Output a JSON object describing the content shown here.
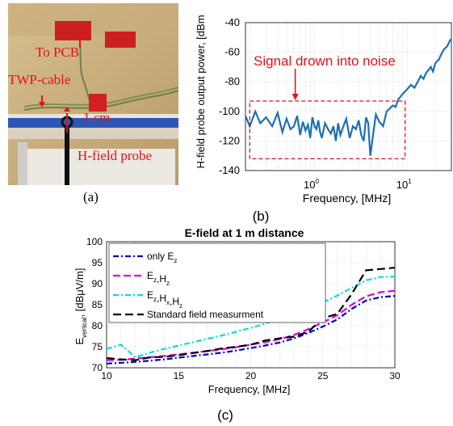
{
  "photo": {
    "labels": {
      "to_pcb": "To PCB",
      "twp_cable": "TWP-cable",
      "distance": "1 cm",
      "probe": "H-field probe"
    }
  },
  "captions": {
    "a": "(a)",
    "b": "(b)",
    "c": "(c)"
  },
  "colors": {
    "annotation_red": "#e3121b",
    "trace_blue": "#1f6fb2"
  },
  "chart_data": [
    {
      "type": "line",
      "panel": "b",
      "title": "",
      "xlabel": "Frequency, [MHz]",
      "ylabel": "H-field probe output power, [dBm",
      "xscale": "log",
      "xlim": [
        0.18,
        30
      ],
      "ylim": [
        -140,
        -40
      ],
      "yticks": [
        -40,
        -60,
        -80,
        -100,
        -120,
        -140
      ],
      "xtick_labels": [
        {
          "value": 1,
          "base": "10",
          "exp": "0"
        },
        {
          "value": 10,
          "base": "10",
          "exp": "1"
        }
      ],
      "grid": true,
      "annotation": "Signal drown into noise",
      "annotation_box": {
        "x": [
          0.2,
          9.5
        ],
        "y": [
          -93,
          -132
        ]
      },
      "annotation_arrow_x": 0.62,
      "series": [
        {
          "color": "#1f6fb2",
          "x": [
            0.18,
            0.2,
            0.23,
            0.26,
            0.3,
            0.35,
            0.4,
            0.45,
            0.5,
            0.55,
            0.6,
            0.65,
            0.7,
            0.75,
            0.8,
            0.85,
            0.9,
            0.95,
            1.0,
            1.05,
            1.1,
            1.15,
            1.2,
            1.3,
            1.4,
            1.5,
            1.6,
            1.7,
            1.8,
            1.9,
            2.0,
            2.2,
            2.4,
            2.6,
            2.8,
            3.0,
            3.2,
            3.4,
            3.6,
            3.8,
            4.0,
            4.3,
            4.6,
            5.0,
            5.5,
            6.0,
            6.5,
            7.0,
            7.5,
            8.0,
            9.0,
            10,
            11,
            12,
            13,
            14,
            15,
            16,
            17,
            18,
            19,
            20,
            21,
            22,
            23,
            24,
            25,
            26,
            27,
            28,
            29,
            30
          ],
          "y": [
            -103,
            -110,
            -100,
            -108,
            -104,
            -110,
            -101,
            -114,
            -105,
            -112,
            -110,
            -103,
            -116,
            -107,
            -113,
            -109,
            -118,
            -104,
            -110,
            -112,
            -106,
            -114,
            -118,
            -108,
            -112,
            -115,
            -110,
            -120,
            -108,
            -116,
            -112,
            -105,
            -118,
            -110,
            -112,
            -106,
            -116,
            -120,
            -104,
            -108,
            -130,
            -115,
            -102,
            -107,
            -110,
            -100,
            -98,
            -96,
            -97,
            -92,
            -88,
            -85,
            -82,
            -84,
            -80,
            -76,
            -78,
            -74,
            -72,
            -70,
            -73,
            -68,
            -66,
            -65,
            -62,
            -60,
            -58,
            -57,
            -56,
            -54,
            -52,
            -51
          ]
        }
      ]
    },
    {
      "type": "line",
      "panel": "c",
      "title": "E-field at 1 m distance",
      "xlabel": "Frequency, [MHz]",
      "ylabel": "E",
      "ylabel_sub": "vertical",
      "ylabel_suffix": ", [dBμV/m]",
      "xlim": [
        10,
        30
      ],
      "ylim": [
        70,
        100
      ],
      "xticks": [
        10,
        15,
        20,
        25,
        30
      ],
      "yticks": [
        70,
        75,
        80,
        85,
        90,
        95,
        100
      ],
      "grid": true,
      "legend_position": "top-left",
      "x": [
        10,
        11,
        12,
        13,
        14,
        15,
        16,
        17,
        18,
        19,
        20,
        21,
        22,
        23,
        24,
        25,
        26,
        27,
        28,
        29,
        30
      ],
      "series": [
        {
          "legend": [
            [
              "only E",
              "z"
            ]
          ],
          "color": "#0000cc",
          "dash": "7 3 2 3",
          "values": [
            71.0,
            71.2,
            71.4,
            71.7,
            72.0,
            72.4,
            72.8,
            73.2,
            73.6,
            74.1,
            74.7,
            75.3,
            76.0,
            77.0,
            78.3,
            79.8,
            81.5,
            84.0,
            86.0,
            86.8,
            87.1
          ]
        },
        {
          "legend": [
            [
              "E",
              "z"
            ],
            [
              ",H",
              "z"
            ]
          ],
          "color": "#e000e0",
          "dash": "9 4",
          "values": [
            71.8,
            71.9,
            72.2,
            72.5,
            72.8,
            73.2,
            73.6,
            74.0,
            74.4,
            74.9,
            75.5,
            76.1,
            76.8,
            77.8,
            79.2,
            80.8,
            82.5,
            85.0,
            87.0,
            88.0,
            88.3
          ]
        },
        {
          "legend": [
            [
              "E",
              "z"
            ],
            [
              ",H",
              "x"
            ],
            [
              ",H",
              "z"
            ]
          ],
          "color": "#00e0e0",
          "dash": "7 3 2 3",
          "values": [
            74.5,
            75.5,
            72.5,
            73.6,
            74.5,
            75.3,
            76.1,
            76.9,
            77.7,
            78.6,
            79.5,
            80.5,
            81.6,
            82.7,
            84.0,
            85.5,
            87.2,
            89.0,
            90.8,
            91.6,
            91.7
          ]
        },
        {
          "legend": [
            [
              "Standard field measurment",
              ""
            ]
          ],
          "color": "#000000",
          "dash": "10 5",
          "values": [
            72.3,
            72.0,
            71.8,
            72.5,
            72.6,
            73.0,
            73.5,
            74.0,
            74.6,
            75.0,
            75.5,
            76.5,
            77.0,
            77.4,
            78.6,
            81.8,
            82.8,
            87.5,
            93.2,
            93.5,
            93.8
          ]
        }
      ]
    }
  ]
}
